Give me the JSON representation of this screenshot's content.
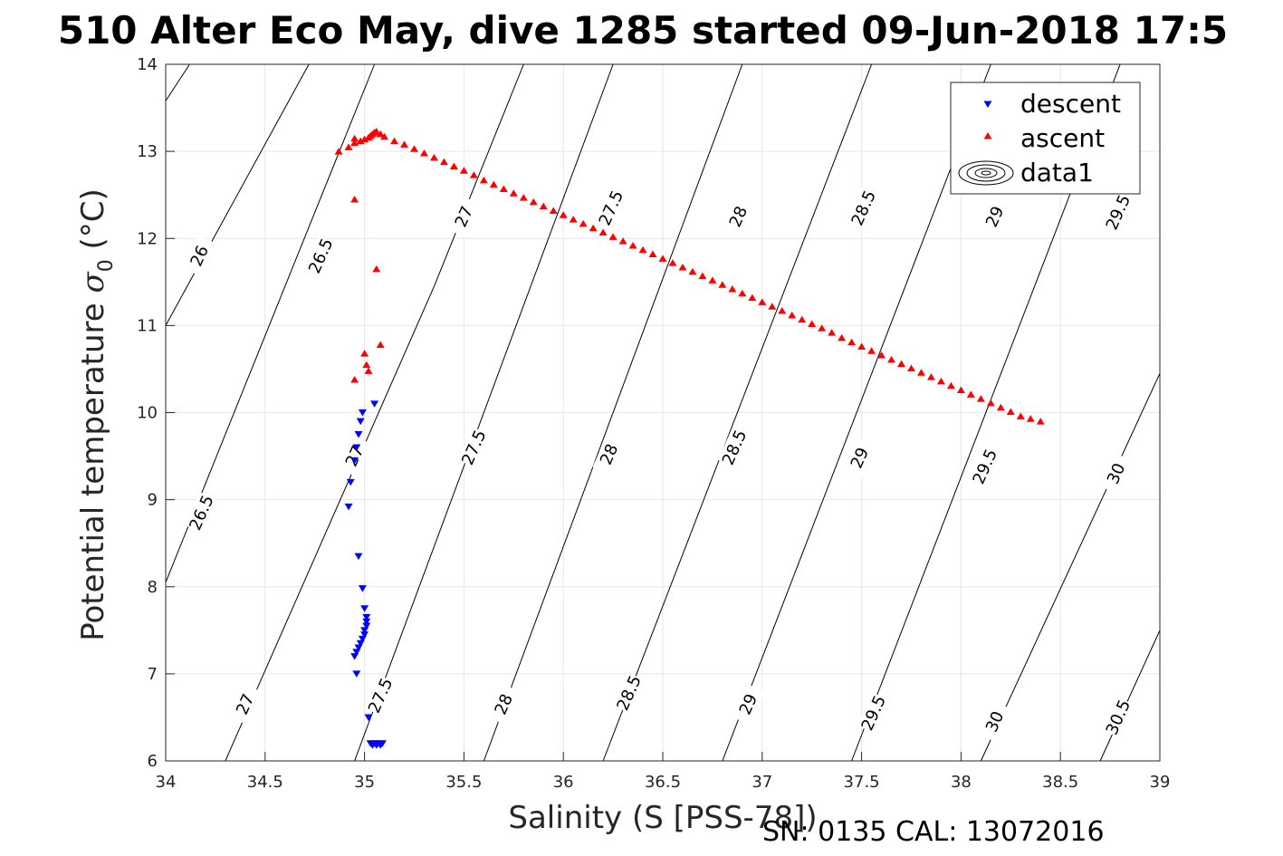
{
  "chart_data": {
    "type": "scatter",
    "title": "510 Alter Eco May, dive 1285 started 09-Jun-2018 17:5",
    "xlabel": "Salinity (S [PSS-78])",
    "ylabel_main": "Potential temperature ",
    "ylabel_sigma": "σ",
    "ylabel_sub": "0",
    "ylabel_unit": " (°C)",
    "footer": "SN: 0135  CAL: 13072016",
    "xlim": [
      34,
      39
    ],
    "ylim": [
      6,
      14
    ],
    "xticks": [
      "34",
      "34.5",
      "35",
      "35.5",
      "36",
      "36.5",
      "37",
      "37.5",
      "38",
      "38.5",
      "39"
    ],
    "yticks": [
      "6",
      "7",
      "8",
      "9",
      "10",
      "11",
      "12",
      "13",
      "14"
    ],
    "grid": true,
    "legend": {
      "placement": "top-right",
      "entries": [
        {
          "name": "descent",
          "color": "#0000ff",
          "marker": "triangle-down"
        },
        {
          "name": "ascent",
          "color": "#ff0000",
          "marker": "triangle-up"
        },
        {
          "name": "data1",
          "color": "#000000",
          "marker": "contour"
        }
      ]
    },
    "series": [
      {
        "name": "descent",
        "color": "#0000ff",
        "x": [
          35.05,
          34.99,
          34.98,
          34.97,
          34.96,
          34.95,
          34.93,
          34.92,
          34.97,
          34.99,
          35.0,
          35.01,
          35.01,
          35.01,
          35.0,
          35.0,
          34.99,
          34.98,
          34.97,
          34.96,
          34.95,
          34.96,
          35.02,
          35.03,
          35.05,
          35.07,
          35.09,
          35.04,
          35.06,
          35.08
        ],
        "y": [
          10.1,
          10.0,
          9.9,
          9.75,
          9.6,
          9.45,
          9.2,
          8.92,
          8.35,
          7.98,
          7.75,
          7.65,
          7.6,
          7.55,
          7.5,
          7.45,
          7.4,
          7.35,
          7.3,
          7.25,
          7.2,
          7.0,
          6.5,
          6.2,
          6.2,
          6.2,
          6.2,
          6.18,
          6.18,
          6.18
        ]
      },
      {
        "name": "ascent",
        "color": "#ff0000",
        "x": [
          34.95,
          35.06,
          35.08,
          35.0,
          35.01,
          35.02,
          34.95,
          34.95,
          34.87,
          34.92,
          34.95,
          34.98,
          35.0,
          35.02,
          35.03,
          35.04,
          35.05,
          35.06,
          35.08,
          35.1,
          35.15,
          35.2,
          35.25,
          35.3,
          35.35,
          35.4,
          35.45,
          35.5,
          35.55,
          35.6,
          35.65,
          35.7,
          35.75,
          35.8,
          35.85,
          35.9,
          35.95,
          36.0,
          36.05,
          36.1,
          36.15,
          36.2,
          36.25,
          36.3,
          36.35,
          36.4,
          36.45,
          36.5,
          36.55,
          36.6,
          36.65,
          36.7,
          36.75,
          36.8,
          36.85,
          36.9,
          36.95,
          37.0,
          37.05,
          37.1,
          37.15,
          37.2,
          37.25,
          37.3,
          37.35,
          37.4,
          37.45,
          37.5,
          37.55,
          37.6,
          37.65,
          37.7,
          37.75,
          37.8,
          37.85,
          37.9,
          37.95,
          38.0,
          38.05,
          38.1,
          38.15,
          38.2,
          38.25,
          38.3,
          38.35,
          38.4
        ],
        "y": [
          12.45,
          11.65,
          10.78,
          10.68,
          10.55,
          10.48,
          10.38,
          13.15,
          13.0,
          13.05,
          13.1,
          13.12,
          13.14,
          13.16,
          13.18,
          13.2,
          13.22,
          13.23,
          13.2,
          13.17,
          13.12,
          13.08,
          13.03,
          12.98,
          12.93,
          12.88,
          12.83,
          12.78,
          12.73,
          12.67,
          12.62,
          12.57,
          12.52,
          12.47,
          12.42,
          12.37,
          12.32,
          12.27,
          12.22,
          12.17,
          12.12,
          12.07,
          12.02,
          11.97,
          11.92,
          11.87,
          11.82,
          11.77,
          11.72,
          11.67,
          11.62,
          11.57,
          11.52,
          11.47,
          11.42,
          11.37,
          11.32,
          11.27,
          11.22,
          11.17,
          11.12,
          11.07,
          11.02,
          10.97,
          10.92,
          10.86,
          10.81,
          10.76,
          10.71,
          10.66,
          10.61,
          10.56,
          10.51,
          10.46,
          10.41,
          10.36,
          10.31,
          10.26,
          10.21,
          10.16,
          10.11,
          10.06,
          10.01,
          9.96,
          9.93,
          9.9
        ]
      }
    ],
    "contours": {
      "color": "#000000",
      "levels": [
        {
          "value": "26",
          "lines": [
            {
              "x": [
                34.0,
                34.12
              ],
              "y": [
                13.58,
                14.0
              ]
            },
            {
              "x": [
                34.0,
                34.72
              ],
              "y": [
                11.0,
                14.0
              ]
            }
          ]
        },
        {
          "value": "26.5",
          "lines": [
            {
              "x": [
                34.0,
                35.05
              ],
              "y": [
                8.05,
                14.0
              ]
            }
          ]
        },
        {
          "value": "27",
          "lines": [
            {
              "x": [
                34.3,
                35.35
              ],
              "y": [
                6.0,
                11.45
              ]
            },
            {
              "x": [
                35.35,
                35.8
              ],
              "y": [
                11.45,
                14.0
              ]
            }
          ]
        },
        {
          "value": "27.5",
          "lines": [
            {
              "x": [
                34.95,
                36.25
              ],
              "y": [
                6.0,
                14.0
              ]
            }
          ]
        },
        {
          "value": "28",
          "lines": [
            {
              "x": [
                35.6,
                36.9
              ],
              "y": [
                6.0,
                14.0
              ]
            }
          ]
        },
        {
          "value": "28.5",
          "lines": [
            {
              "x": [
                36.2,
                37.55
              ],
              "y": [
                6.0,
                14.0
              ]
            }
          ]
        },
        {
          "value": "29",
          "lines": [
            {
              "x": [
                36.8,
                38.15
              ],
              "y": [
                6.0,
                14.0
              ]
            }
          ]
        },
        {
          "value": "29.5",
          "lines": [
            {
              "x": [
                37.45,
                38.8
              ],
              "y": [
                6.0,
                14.0
              ]
            }
          ]
        },
        {
          "value": "30",
          "lines": [
            {
              "x": [
                38.1,
                39.0
              ],
              "y": [
                6.0,
                10.45
              ]
            }
          ]
        },
        {
          "value": "30.5",
          "lines": [
            {
              "x": [
                38.7,
                39.0
              ],
              "y": [
                6.0,
                7.5
              ]
            }
          ]
        }
      ],
      "labels": [
        {
          "text": "26",
          "x": 34.17,
          "y": 11.8
        },
        {
          "text": "26.5",
          "x": 34.78,
          "y": 11.8
        },
        {
          "text": "27",
          "x": 35.5,
          "y": 12.25
        },
        {
          "text": "27.5",
          "x": 36.24,
          "y": 12.35
        },
        {
          "text": "28",
          "x": 36.88,
          "y": 12.25
        },
        {
          "text": "28.5",
          "x": 37.51,
          "y": 12.35
        },
        {
          "text": "29",
          "x": 38.17,
          "y": 12.25
        },
        {
          "text": "29.5",
          "x": 38.79,
          "y": 12.3
        },
        {
          "text": "26.5",
          "x": 34.18,
          "y": 8.85
        },
        {
          "text": "27",
          "x": 34.95,
          "y": 9.5
        },
        {
          "text": "27.5",
          "x": 35.55,
          "y": 9.6
        },
        {
          "text": "28",
          "x": 36.23,
          "y": 9.52
        },
        {
          "text": "28.5",
          "x": 36.86,
          "y": 9.6
        },
        {
          "text": "29",
          "x": 37.49,
          "y": 9.48
        },
        {
          "text": "29.5",
          "x": 38.12,
          "y": 9.38
        },
        {
          "text": "30",
          "x": 38.78,
          "y": 9.3
        },
        {
          "text": "27",
          "x": 34.4,
          "y": 6.65
        },
        {
          "text": "27.5",
          "x": 35.08,
          "y": 6.75
        },
        {
          "text": "28",
          "x": 35.7,
          "y": 6.65
        },
        {
          "text": "28.5",
          "x": 36.33,
          "y": 6.78
        },
        {
          "text": "29",
          "x": 36.93,
          "y": 6.65
        },
        {
          "text": "29.5",
          "x": 37.56,
          "y": 6.55
        },
        {
          "text": "30",
          "x": 38.17,
          "y": 6.45
        },
        {
          "text": "30.5",
          "x": 38.79,
          "y": 6.5
        }
      ]
    }
  }
}
